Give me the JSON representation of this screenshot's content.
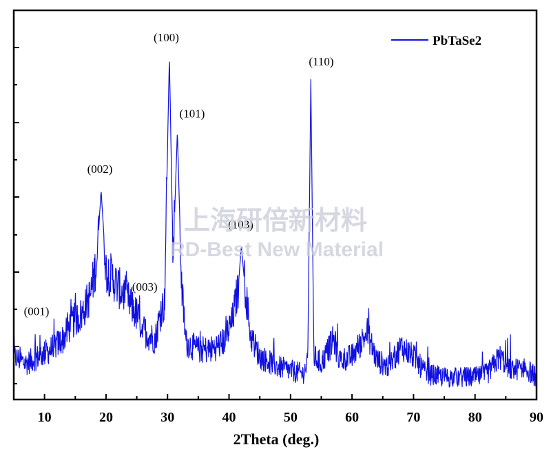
{
  "chart_data": {
    "type": "line",
    "xlabel": "2Theta (deg.)",
    "ylabel": "",
    "xlim": [
      5,
      90
    ],
    "ylim": [
      0,
      1
    ],
    "x_ticks": [
      "10",
      "20",
      "30",
      "40",
      "50",
      "60",
      "70",
      "80",
      "90"
    ],
    "y_ticks_labeled": false,
    "grid": false,
    "legend_position": "top-right",
    "series": [
      {
        "name": "PbTaSe2",
        "color": "#1010e0",
        "x": [
          5,
          7,
          9,
          11,
          13,
          14.5,
          16,
          17.5,
          18.5,
          19.2,
          20,
          21,
          22,
          23,
          24,
          25,
          26,
          27,
          28,
          29,
          29.5,
          30.3,
          30.9,
          31.6,
          32.3,
          33,
          35,
          37,
          39,
          40.5,
          41.5,
          42,
          42.5,
          43.5,
          45,
          48,
          50,
          52,
          52.8,
          53.3,
          53.8,
          55,
          57,
          58,
          60,
          62.5,
          64,
          66,
          68,
          70,
          72,
          75,
          78,
          80,
          82,
          84,
          86,
          88,
          90
        ],
        "y": [
          0.1,
          0.08,
          0.1,
          0.12,
          0.15,
          0.2,
          0.22,
          0.28,
          0.38,
          0.58,
          0.35,
          0.33,
          0.3,
          0.28,
          0.25,
          0.22,
          0.18,
          0.16,
          0.15,
          0.24,
          0.25,
          0.97,
          0.38,
          0.75,
          0.3,
          0.14,
          0.12,
          0.12,
          0.14,
          0.2,
          0.3,
          0.42,
          0.32,
          0.16,
          0.1,
          0.07,
          0.06,
          0.05,
          0.08,
          0.9,
          0.1,
          0.08,
          0.15,
          0.09,
          0.1,
          0.17,
          0.09,
          0.07,
          0.13,
          0.1,
          0.05,
          0.04,
          0.04,
          0.04,
          0.05,
          0.1,
          0.06,
          0.07,
          0.04
        ]
      }
    ],
    "annotations": [
      {
        "text": "(001)",
        "x": 8.7,
        "y": 0.22
      },
      {
        "text": "(002)",
        "x": 19.0,
        "y": 0.63
      },
      {
        "text": "(003)",
        "x": 26.3,
        "y": 0.29
      },
      {
        "text": "(100)",
        "x": 29.8,
        "y": 1.01
      },
      {
        "text": "(101)",
        "x": 34.0,
        "y": 0.79
      },
      {
        "text": "(103)",
        "x": 41.9,
        "y": 0.47
      },
      {
        "text": "(110)",
        "x": 55.0,
        "y": 0.94
      }
    ]
  },
  "watermark": {
    "line1": "上海研倍新材料",
    "line2": "RD-Best New Material"
  }
}
